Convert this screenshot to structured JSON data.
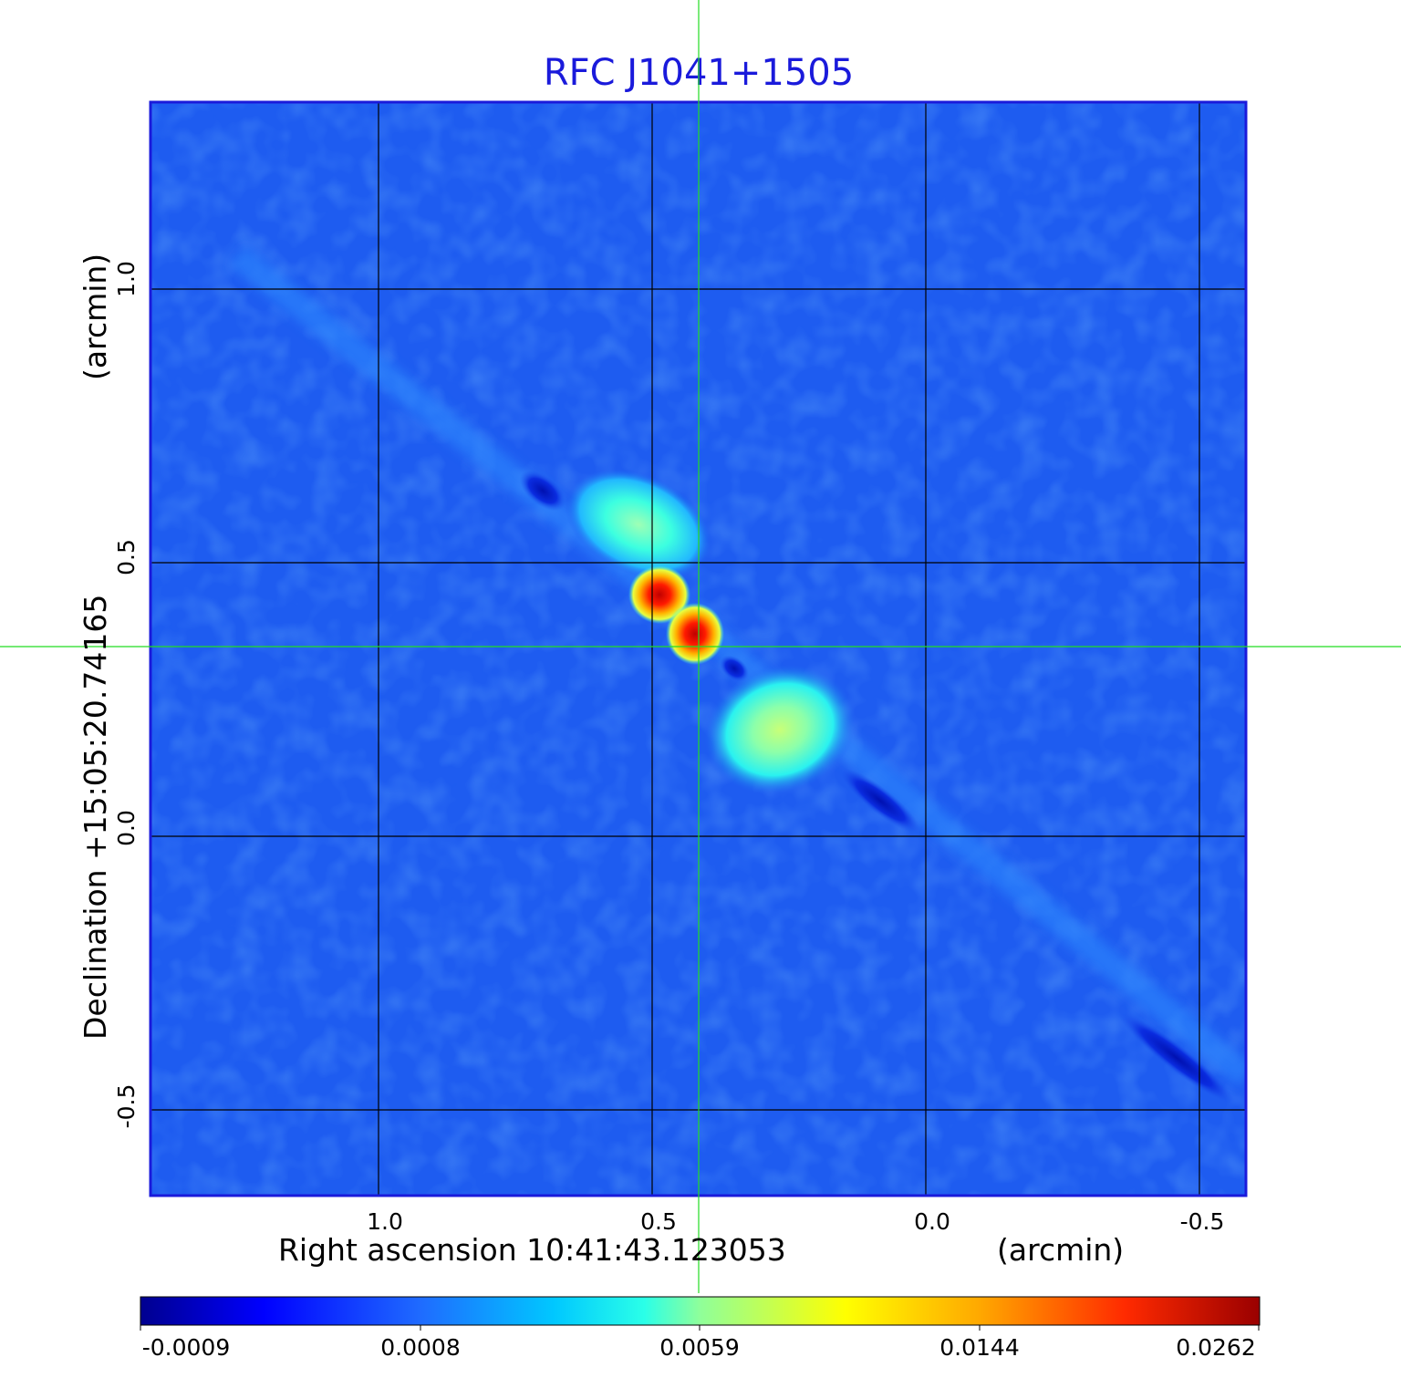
{
  "title": "RFC J1041+1505",
  "x_axis": {
    "label": "Right ascension  10:41:43.123053",
    "unit": "(arcmin)",
    "ticks": [
      "1.0",
      "0.5",
      "0.0",
      "-0.5"
    ]
  },
  "y_axis": {
    "label": "Declination  +15:05:20.74165",
    "unit": "(arcmin)",
    "ticks": [
      "1.0",
      "0.5",
      "0.0",
      "-0.5"
    ]
  },
  "colorbar": {
    "ticks": [
      "-0.0009",
      "0.0008",
      "0.0059",
      "0.0144",
      "0.0262"
    ],
    "colormap": "jet"
  },
  "colors": {
    "title": "#1a1adb",
    "crosshair": "#22dd22",
    "background_field": "#1e5cf0",
    "frame": "#1a1adb"
  }
}
